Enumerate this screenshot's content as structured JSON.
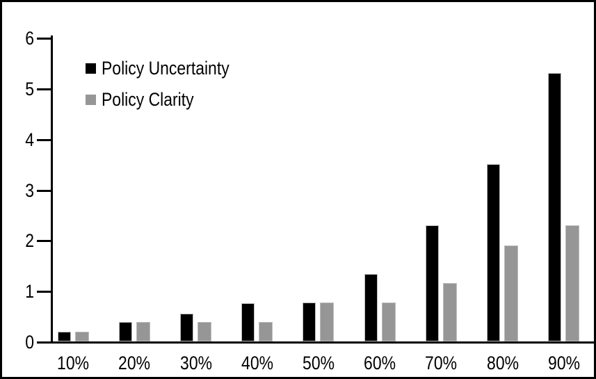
{
  "chart_data": {
    "type": "bar",
    "title": "",
    "xlabel": "",
    "ylabel": "",
    "categories": [
      "10%",
      "20%",
      "30%",
      "40%",
      "50%",
      "60%",
      "70%",
      "80%",
      "90%"
    ],
    "series": [
      {
        "name": "Policy Uncertainty",
        "color": "#000000",
        "values": [
          0.19,
          0.38,
          0.55,
          0.76,
          0.77,
          1.33,
          2.3,
          3.5,
          5.3
        ]
      },
      {
        "name": "Policy Clarity",
        "color": "#969696",
        "values": [
          0.19,
          0.38,
          0.38,
          0.38,
          0.77,
          0.77,
          1.15,
          1.9,
          2.3
        ]
      }
    ],
    "ylim": [
      0,
      6
    ],
    "yticks": [
      0,
      1,
      2,
      3,
      4,
      5,
      6
    ],
    "grid": false,
    "legend_position": "top-left-inside",
    "bar_border_color": "#bdbdbd",
    "frame_border_color": "#000000"
  },
  "legend": {
    "items": [
      {
        "label": "Policy Uncertainty",
        "color": "#000000"
      },
      {
        "label": "Policy Clarity",
        "color": "#969696"
      }
    ]
  }
}
